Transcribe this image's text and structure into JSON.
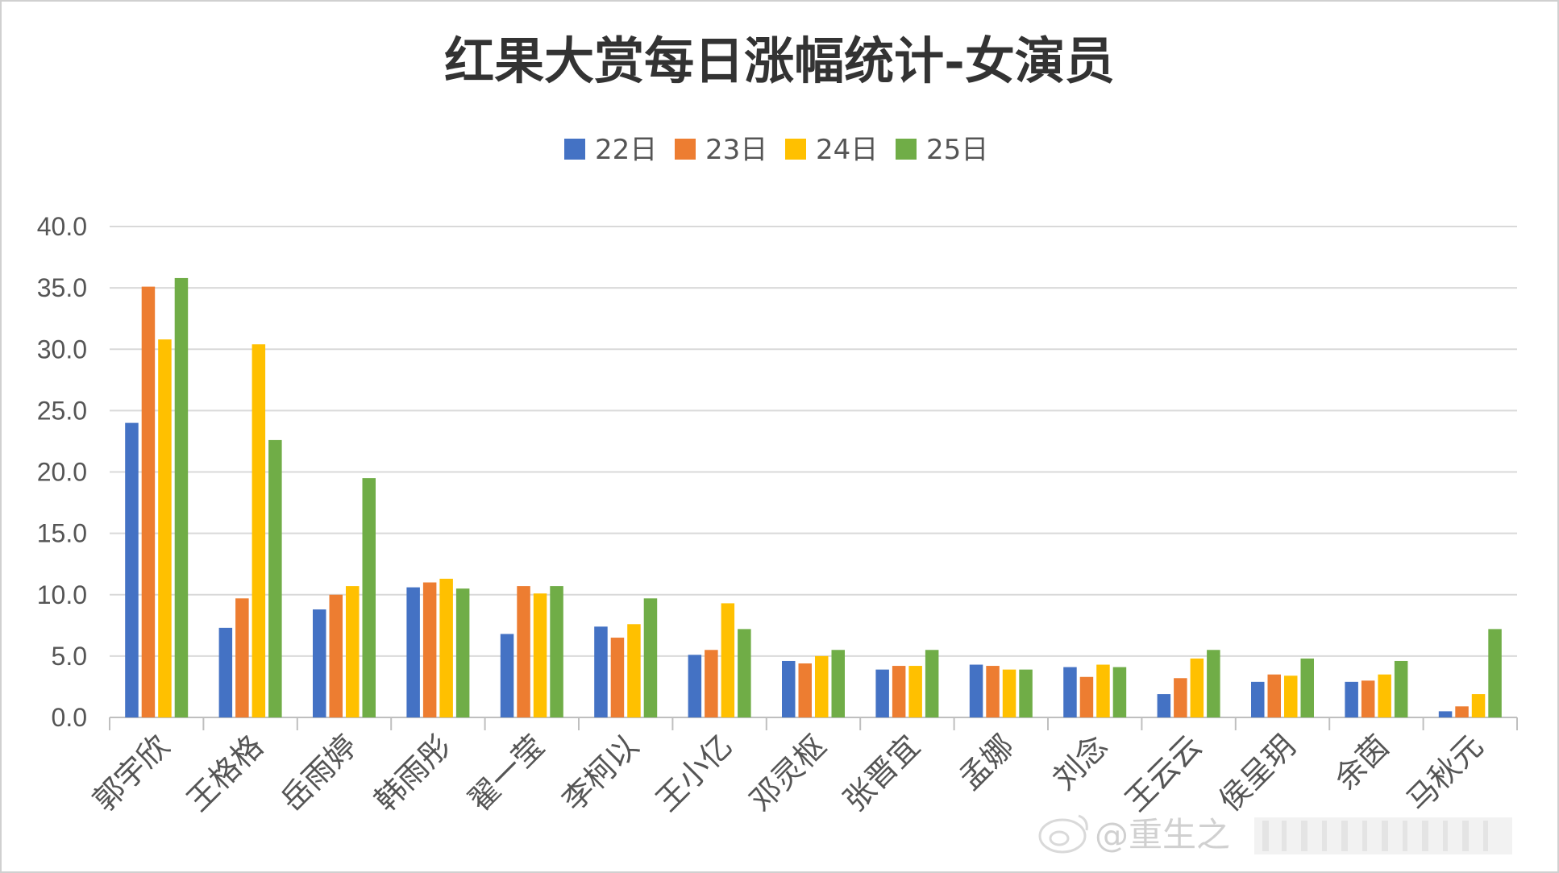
{
  "chart_data": {
    "type": "bar",
    "title": "红果大赏每日涨幅统计-女演员",
    "xlabel": "",
    "ylabel": "",
    "ylim": [
      0,
      40
    ],
    "yticks": [
      "0.0",
      "5.0",
      "10.0",
      "15.0",
      "20.0",
      "25.0",
      "30.0",
      "35.0",
      "40.0"
    ],
    "grid": true,
    "legend_position": "top",
    "categories": [
      "郭宇欣",
      "王格格",
      "岳雨婷",
      "韩雨彤",
      "翟一莹",
      "李柯以",
      "王小亿",
      "邓灵枢",
      "张晋宜",
      "孟娜",
      "刘念",
      "王云云",
      "侯呈玥",
      "余茵",
      "马秋元"
    ],
    "series": [
      {
        "name": "22日",
        "color": "#4472C4",
        "values": [
          24.0,
          7.3,
          8.8,
          10.6,
          6.8,
          7.4,
          5.1,
          4.6,
          3.9,
          4.3,
          4.1,
          1.9,
          2.9,
          2.9,
          0.5
        ]
      },
      {
        "name": "23日",
        "color": "#ED7D31",
        "values": [
          35.1,
          9.7,
          10.0,
          11.0,
          10.7,
          6.5,
          5.5,
          4.4,
          4.2,
          4.2,
          3.3,
          3.2,
          3.5,
          3.0,
          0.9
        ]
      },
      {
        "name": "24日",
        "color": "#FFC000",
        "values": [
          30.8,
          30.4,
          10.7,
          11.3,
          10.1,
          7.6,
          9.3,
          5.0,
          4.2,
          3.9,
          4.3,
          4.8,
          3.4,
          3.5,
          1.9
        ]
      },
      {
        "name": "25日",
        "color": "#70AD47",
        "values": [
          35.8,
          22.6,
          19.5,
          10.5,
          10.7,
          9.7,
          7.2,
          5.5,
          5.5,
          3.9,
          4.1,
          5.5,
          4.8,
          4.6,
          7.2
        ]
      }
    ]
  },
  "watermark": {
    "text": "@重生之"
  }
}
